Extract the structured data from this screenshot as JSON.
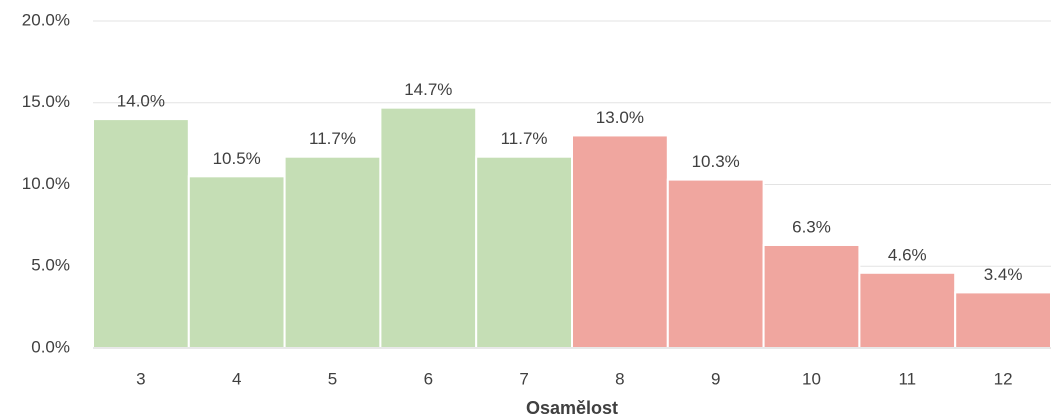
{
  "chart_data": {
    "type": "bar",
    "x_label": "Osamělost",
    "categories": [
      "3",
      "4",
      "5",
      "6",
      "7",
      "8",
      "9",
      "10",
      "11",
      "12"
    ],
    "values": [
      14.0,
      10.5,
      11.7,
      14.7,
      11.7,
      13.0,
      10.3,
      6.3,
      4.6,
      3.4
    ],
    "value_labels": [
      "14.0%",
      "10.5%",
      "11.7%",
      "14.7%",
      "11.7%",
      "13.0%",
      "10.3%",
      "6.3%",
      "4.6%",
      "3.4%"
    ],
    "colors": [
      "#c5deb5",
      "#c5deb5",
      "#c5deb5",
      "#c5deb5",
      "#c5deb5",
      "#f0a69f",
      "#f0a69f",
      "#f0a69f",
      "#f0a69f",
      "#f0a69f"
    ],
    "ylim": [
      0,
      20
    ],
    "yticks": [
      {
        "value": 0,
        "label": "0.0%"
      },
      {
        "value": 5,
        "label": "5.0%"
      },
      {
        "value": 10,
        "label": "10.0%"
      },
      {
        "value": 15,
        "label": "15.0%"
      },
      {
        "value": 20,
        "label": "20.0%"
      }
    ],
    "grid": true
  }
}
